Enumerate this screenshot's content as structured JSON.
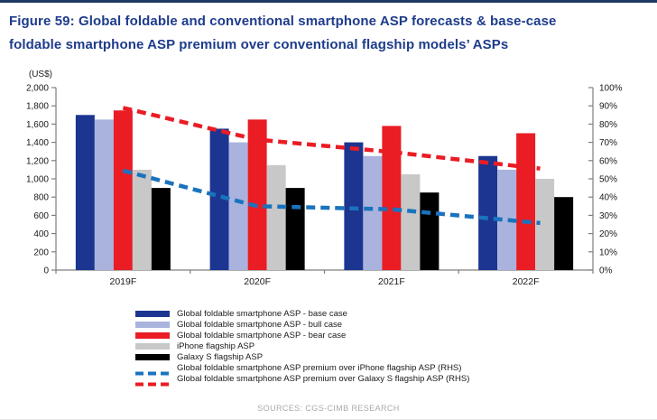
{
  "page": {
    "title_line1": "Figure 59: Global foldable and conventional smartphone ASP forecasts & base-case",
    "title_line2": "foldable smartphone ASP premium over conventional flagship models’ ASPs",
    "source": "SOURCES: CGS-CIMB RESEARCH",
    "accent_color": "#1F3864"
  },
  "chart_data": {
    "type": "bar+line",
    "title": "Global foldable and conventional smartphone ASP forecasts & base-case foldable smartphone ASP premium over conventional flagship models’ ASPs",
    "unit_label": "(US$)",
    "categories": [
      "2019F",
      "2020F",
      "2021F",
      "2022F"
    ],
    "series": [
      {
        "id": "base-case",
        "name": "Global foldable smartphone ASP - base case",
        "type": "bar",
        "axis": "left",
        "color": "#1C3590",
        "values": [
          1700,
          1550,
          1400,
          1250
        ]
      },
      {
        "id": "bull-case",
        "name": "Global foldable smartphone ASP - bull case",
        "type": "bar",
        "axis": "left",
        "color": "#A9B3DD",
        "values": [
          1650,
          1400,
          1250,
          1100
        ]
      },
      {
        "id": "bear-case",
        "name": "Global foldable smartphone ASP - bear case",
        "type": "bar",
        "axis": "left",
        "color": "#EA1C24",
        "values": [
          1750,
          1650,
          1580,
          1500
        ]
      },
      {
        "id": "iphone-flagship",
        "name": "iPhone flagship ASP",
        "type": "bar",
        "axis": "left",
        "color": "#C8C8C8",
        "values": [
          1100,
          1150,
          1050,
          1000
        ]
      },
      {
        "id": "galaxy-s-flagship",
        "name": "Galaxy S flagship ASP",
        "type": "bar",
        "axis": "left",
        "color": "#000000",
        "values": [
          900,
          900,
          850,
          800
        ]
      },
      {
        "id": "premium-over-iphone",
        "name": "Global foldable smartphone ASP premium over iPhone flagship ASP (RHS)",
        "type": "dashed-line",
        "axis": "right",
        "color": "#1A73BE",
        "values": [
          54.5,
          35,
          33.3,
          26.5
        ]
      },
      {
        "id": "premium-over-galaxy",
        "name": "Global foldable smartphone ASP premium over Galaxy S flagship ASP (RHS)",
        "type": "dashed-line",
        "axis": "right",
        "color": "#EA1C24",
        "values": [
          88.9,
          71.5,
          64.7,
          56.5
        ]
      }
    ],
    "left_axis": {
      "min": 0,
      "max": 2000,
      "step": 200
    },
    "right_axis": {
      "min": 0,
      "max": 100,
      "step": 10,
      "suffix": "%"
    },
    "grid": false,
    "legend_position": "bottom"
  }
}
